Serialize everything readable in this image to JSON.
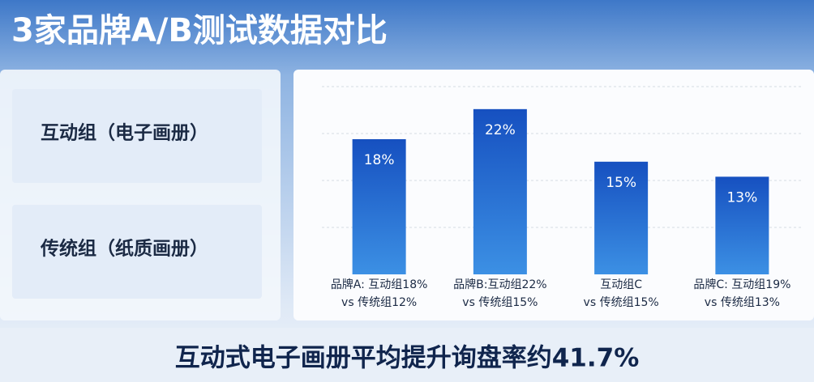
{
  "title": "3家品牌A/B测试数据对比",
  "groups": [
    "互动组（电子画册）",
    "传统组（纸质画册）"
  ],
  "chart_data": {
    "type": "bar",
    "categories": [
      [
        "品牌A: 互动组18%",
        "vs 传统组12%"
      ],
      [
        "品牌B:互动组22%",
        "vs 传统组15%"
      ],
      [
        "互动组C",
        "vs 传统组15%"
      ],
      [
        "品牌C: 互动组19%",
        "vs 传统组13%"
      ]
    ],
    "values": [
      18,
      22,
      15,
      13
    ],
    "value_labels": [
      "18%",
      "22%",
      "15%",
      "13%"
    ],
    "ylim": [
      0,
      25
    ]
  },
  "footer": "互动式电子画册平均提升询盘率约41.7%"
}
